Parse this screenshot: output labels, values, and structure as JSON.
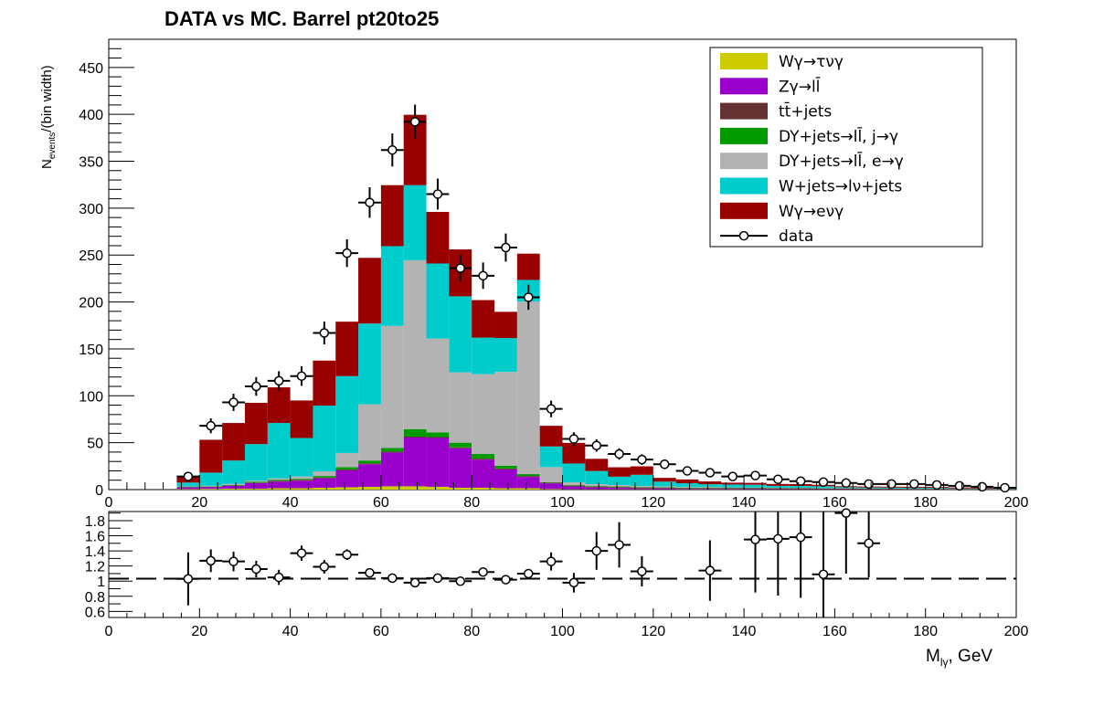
{
  "title": "DATA vs MC. Barrel  pt20to25",
  "colors": {
    "Wg_taunug": "#cccc00",
    "Zg_llbar": "#9900cc",
    "ttbar_jets": "#663333",
    "DYjets_jg": "#009900",
    "DYjets_eg": "#b3b3b3",
    "Wjets_lnujets": "#00cccc",
    "Wg_enug": "#990000",
    "data": "#000000"
  },
  "chart_data": [
    {
      "type": "bar",
      "subtype": "stacked-histogram-with-data-points",
      "panel": "main",
      "title": "DATA vs MC. Barrel  pt20to25",
      "xlabel_main": "M",
      "xlabel_sub": "lγ",
      "xlabel_unit": ", GeV",
      "ylabel_main": "N",
      "ylabel_sub": "events",
      "ylabel_rest": "/(bin width)",
      "xlim": [
        0,
        200
      ],
      "ylim": [
        0,
        480
      ],
      "x_ticks": [
        0,
        20,
        40,
        60,
        80,
        100,
        120,
        140,
        160,
        180,
        200
      ],
      "y_ticks": [
        0,
        50,
        100,
        150,
        200,
        250,
        300,
        350,
        400,
        450
      ],
      "bin_width": 5,
      "bin_low_edges": [
        15,
        20,
        25,
        30,
        35,
        40,
        45,
        50,
        55,
        60,
        65,
        70,
        75,
        80,
        85,
        90,
        95,
        100,
        105,
        110,
        115,
        120,
        125,
        130,
        135,
        140,
        145,
        150,
        155,
        160,
        165,
        170,
        175,
        180,
        185,
        190,
        195
      ],
      "legend_position": "top-right",
      "series": [
        {
          "key": "Wg_taunug",
          "legend": " Wγ→τνγ",
          "values": [
            0.5,
            0.8,
            1,
            1,
            1.5,
            1.5,
            2,
            2.5,
            3,
            3.5,
            3.5,
            3,
            2,
            2,
            1.5,
            1.5,
            0.5,
            0.3,
            0.3,
            0.3,
            0.3,
            0.2,
            0.2,
            0.2,
            0.2,
            0.1,
            0.1,
            0.1,
            0.1,
            0.1,
            0.1,
            0.1,
            0.1,
            0.1,
            0.1,
            0.1,
            0.1
          ]
        },
        {
          "key": "Zg_llbar",
          "legend": "Zγ→ll̄",
          "values": [
            2,
            2,
            3,
            6,
            7,
            8,
            10,
            18,
            24,
            36,
            52,
            52,
            42,
            30,
            20,
            12,
            6,
            3,
            2,
            1.5,
            1,
            1,
            0.5,
            0.5,
            0.5,
            0.5,
            0.3,
            0.3,
            0.3,
            0.3,
            0.2,
            0.2,
            0.2,
            0.2,
            0.1,
            0.1,
            0.1
          ]
        },
        {
          "key": "ttbar_jets",
          "legend": "tt̄+jets",
          "values": [
            0.2,
            0.3,
            0.5,
            0.5,
            1,
            1,
            1,
            1,
            1,
            1,
            1,
            1,
            1,
            1,
            1,
            1,
            1,
            1,
            1,
            1,
            1,
            1,
            1,
            1,
            1,
            1,
            1,
            1,
            0.8,
            0.8,
            0.7,
            0.6,
            0.5,
            0.5,
            0.4,
            0.3,
            0.3
          ]
        },
        {
          "key": "DYjets_jg",
          "legend": "DY+jets→ll̄, j→γ",
          "values": [
            0.5,
            0.5,
            0.5,
            1,
            1,
            1,
            1.5,
            2.5,
            3,
            4,
            8,
            5,
            5,
            5,
            3,
            2,
            0.5,
            0.5,
            0.5,
            0.5,
            0.5,
            0.5,
            0.5,
            0.5,
            0.3,
            0.3,
            0.3,
            0.3,
            0.2,
            0.2,
            0.2,
            0.1,
            0.1,
            0.1,
            0.1,
            0.1,
            0.1
          ]
        },
        {
          "key": "DYjets_eg",
          "legend": "DY+jets→ll̄, e→γ",
          "values": [
            0.3,
            0.5,
            1,
            1,
            1.5,
            2.5,
            5,
            15,
            60,
            130,
            180,
            100,
            75,
            85,
            100,
            184,
            16,
            3,
            2,
            1.5,
            1,
            0.8,
            0.6,
            0.5,
            0.4,
            0.3,
            0.3,
            0.2,
            0.2,
            0.2,
            0.1,
            0.1,
            0.1,
            0.1,
            0.1,
            0.1,
            0.1
          ]
        },
        {
          "key": "Wjets_lnujets",
          "legend": "W+jets→lν+jets",
          "values": [
            4,
            14,
            25,
            39,
            59,
            41,
            70,
            82,
            86,
            85,
            80,
            80,
            81,
            39,
            36,
            23,
            22,
            20,
            14,
            9,
            12,
            5,
            4,
            3,
            3,
            3,
            2,
            2,
            2,
            1,
            1,
            1,
            1,
            1,
            0.5,
            0.5,
            0.5
          ]
        },
        {
          "key": "Wg_enug",
          "legend": "Wγ→eνγ",
          "values": [
            7,
            35,
            40,
            44,
            38,
            40,
            48,
            58,
            70,
            65,
            75,
            55,
            50,
            40,
            28,
            28,
            22,
            22,
            13,
            10,
            9,
            4,
            4,
            3,
            2,
            2,
            2,
            2,
            1.5,
            1,
            1,
            1,
            1,
            1,
            1,
            1,
            1
          ]
        }
      ],
      "data": {
        "legend": "data",
        "x": [
          17.5,
          22.5,
          27.5,
          32.5,
          37.5,
          42.5,
          47.5,
          52.5,
          57.5,
          62.5,
          67.5,
          72.5,
          77.5,
          82.5,
          87.5,
          92.5,
          97.5,
          102.5,
          107.5,
          112.5,
          117.5,
          122.5,
          127.5,
          132.5,
          137.5,
          142.5,
          147.5,
          152.5,
          157.5,
          162.5,
          167.5,
          172.5,
          177.5,
          182.5,
          187.5,
          192.5,
          197.5
        ],
        "y": [
          14,
          68,
          93,
          110,
          116,
          121,
          167,
          252,
          306,
          362,
          392,
          315,
          236,
          228,
          258,
          205,
          86,
          54,
          47,
          38,
          32,
          27,
          20,
          18,
          14,
          15,
          11,
          9,
          8,
          7,
          6,
          6,
          6,
          5,
          4,
          3,
          2
        ]
      }
    },
    {
      "type": "scatter",
      "panel": "ratio",
      "xlim": [
        0,
        200
      ],
      "ylim": [
        0.52,
        1.92
      ],
      "x_ticks": [
        0,
        20,
        40,
        60,
        80,
        100,
        120,
        140,
        160,
        180,
        200
      ],
      "y_ticks": [
        0.6,
        0.8,
        1,
        1.2,
        1.4,
        1.6,
        1.8
      ],
      "reference_line": 1.0,
      "x": [
        17.5,
        22.5,
        27.5,
        32.5,
        37.5,
        42.5,
        47.5,
        52.5,
        57.5,
        62.5,
        67.5,
        72.5,
        77.5,
        82.5,
        87.5,
        92.5,
        97.5,
        102.5,
        107.5,
        112.5,
        117.5,
        132.5,
        142.5,
        147.5,
        152.5,
        157.5,
        162.5,
        167.5
      ],
      "y": [
        1.03,
        1.27,
        1.26,
        1.16,
        1.05,
        1.37,
        1.19,
        1.35,
        1.11,
        1.04,
        0.98,
        1.04,
        1.0,
        1.12,
        1.02,
        1.1,
        1.26,
        0.98,
        1.4,
        1.48,
        1.13,
        1.14,
        1.55,
        1.56,
        1.58,
        1.09,
        1.9,
        1.5
      ],
      "yerr": [
        0.35,
        0.15,
        0.13,
        0.11,
        0.1,
        0.1,
        0.09,
        0.07,
        0.05,
        0.04,
        0.03,
        0.04,
        0.04,
        0.05,
        0.04,
        0.05,
        0.12,
        0.13,
        0.25,
        0.3,
        0.2,
        0.4,
        0.7,
        0.75,
        0.8,
        0.9,
        0.8,
        0.45
      ]
    }
  ]
}
